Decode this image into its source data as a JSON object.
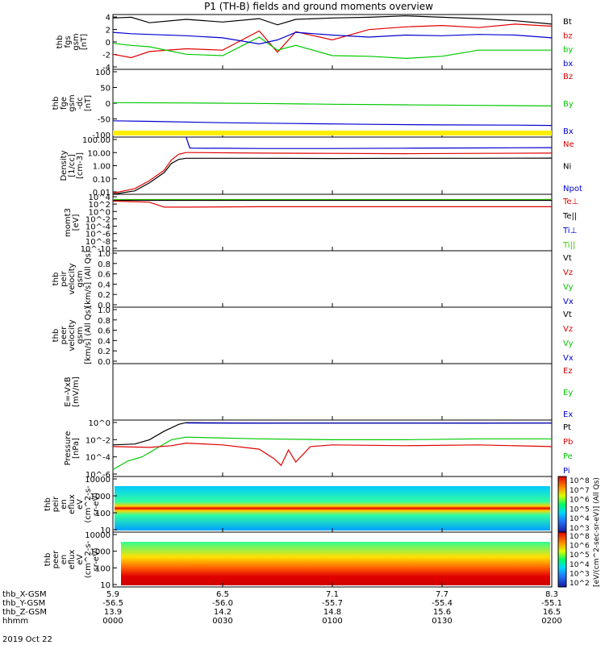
{
  "title": "P1 (TH-B) fields and ground moments overview",
  "date_label": "2019 Oct 22",
  "colors": {
    "black": "#000000",
    "red": "#e00000",
    "green": "#00c800",
    "blue": "#0000d0",
    "yellow": "#ffee00",
    "lime": "#33cc00"
  },
  "colorbar": {
    "ticks": [
      "10^8",
      "10^7",
      "10^6",
      "10^5",
      "10^4",
      "10^3"
    ],
    "ticks2": [
      "10^8",
      "10^6",
      "10^5",
      "10^4",
      "10^3",
      "10^2"
    ],
    "label": "[eV/(cm^2-sec-sr-eV)] (All Qs)"
  },
  "time_axis": {
    "rows": [
      {
        "label": "thb_X-GSM",
        "values": [
          "5.9",
          "6.5",
          "7.1",
          "7.7",
          "8.3"
        ]
      },
      {
        "label": "thb_Y-GSM",
        "values": [
          "-56.5",
          "-56.0",
          "-55.7",
          "-55.4",
          "-55.1"
        ]
      },
      {
        "label": "thb_Z-GSM",
        "values": [
          "13.9",
          "14.2",
          "14.8",
          "15.6",
          "16.5"
        ]
      },
      {
        "label": "hhmm",
        "values": [
          "0000",
          "0030",
          "0100",
          "0130",
          "0200"
        ]
      }
    ]
  },
  "chart_data": [
    {
      "type": "line",
      "id": "fgs",
      "ylabel_lines": [
        "thb",
        "fgs",
        "gsm",
        "[nT]"
      ],
      "ylim": [
        -4,
        4
      ],
      "yticks": [
        "4",
        "2",
        "0",
        "-2",
        "-4"
      ],
      "legend": [
        {
          "name": "Bt",
          "color": "#000000"
        },
        {
          "name": "bz",
          "color": "#e00000"
        },
        {
          "name": "by",
          "color": "#00c800"
        },
        {
          "name": "bx",
          "color": "#0000d0"
        }
      ],
      "series": [
        {
          "name": "Bt",
          "color": "#000000",
          "x": [
            0,
            5,
            10,
            20,
            30,
            40,
            45,
            50,
            60,
            70,
            80,
            90,
            100,
            110,
            120
          ],
          "y": [
            3.5,
            3.6,
            2.8,
            3.3,
            2.9,
            3.4,
            2.5,
            3.3,
            3.5,
            3.6,
            3.8,
            3.6,
            3.4,
            3.1,
            2.6
          ]
        },
        {
          "name": "bz",
          "color": "#e00000",
          "x": [
            0,
            5,
            10,
            20,
            30,
            40,
            45,
            50,
            60,
            70,
            80,
            90,
            100,
            110,
            120
          ],
          "y": [
            -1.8,
            -2.3,
            -1.4,
            -1.0,
            -1.2,
            1.6,
            -1.5,
            1.5,
            0.3,
            1.8,
            2.2,
            2.4,
            2.1,
            2.6,
            2.3
          ]
        },
        {
          "name": "by",
          "color": "#00c800",
          "x": [
            0,
            5,
            10,
            20,
            30,
            40,
            45,
            50,
            60,
            70,
            80,
            90,
            100,
            110,
            120
          ],
          "y": [
            -0.2,
            -0.5,
            -0.7,
            -1.8,
            -2.0,
            0.7,
            -1.2,
            -0.5,
            -2.0,
            -2.1,
            -2.4,
            -2.1,
            -1.2,
            -1.2,
            -1.2
          ]
        },
        {
          "name": "bx",
          "color": "#0000d0",
          "x": [
            0,
            5,
            10,
            20,
            30,
            40,
            45,
            50,
            60,
            70,
            80,
            90,
            100,
            110,
            120
          ],
          "y": [
            1.4,
            1.2,
            1.1,
            0.9,
            0.6,
            -0.3,
            0.3,
            1.4,
            1.0,
            0.7,
            1.0,
            0.9,
            1.1,
            1.0,
            0.6
          ]
        }
      ]
    },
    {
      "type": "line",
      "id": "fge",
      "ylabel_lines": [
        "thb",
        "fge",
        "gsm",
        "-dc",
        "[nT]"
      ],
      "ylim": [
        -150,
        100
      ],
      "yticks": [
        "100",
        "50",
        "0",
        "-50",
        "-100"
      ],
      "legend": [
        {
          "name": "Bz",
          "color": "#e00000"
        },
        {
          "name": "By",
          "color": "#00c800"
        },
        {
          "name": "Bx",
          "color": "#0000d0"
        }
      ],
      "series": [
        {
          "name": "By",
          "color": "#00c800",
          "x": [
            0,
            20,
            40,
            60,
            80,
            100,
            120
          ],
          "y": [
            -23,
            -24,
            -26,
            -29,
            -31,
            -33,
            -35
          ]
        },
        {
          "name": "Bx",
          "color": "#0000d0",
          "x": [
            0,
            10,
            30,
            50,
            70,
            90,
            110,
            120
          ],
          "y": [
            -90,
            -92,
            -97,
            -100,
            -103,
            -105,
            -106,
            -107
          ]
        }
      ]
    },
    {
      "type": "line",
      "id": "density",
      "ylabel_lines": [
        "Density",
        "[1/cc]",
        "[cm-3]"
      ],
      "ylim_log": [
        -2.7,
        2.3
      ],
      "yticks": [
        "100.00",
        "10.00",
        "1.00",
        "0.10",
        "0.01"
      ],
      "legend": [
        {
          "name": "Ne",
          "color": "#e00000"
        },
        {
          "name": "Ni",
          "color": "#000000"
        },
        {
          "name": "Npot",
          "color": "#0000d0"
        }
      ],
      "series": [
        {
          "name": "Npot",
          "color": "#0000d0",
          "x": [
            20,
            21,
            22,
            30,
            40,
            60,
            80,
            100,
            120
          ],
          "y": [
            2.3,
            1.35,
            1.33,
            1.32,
            1.3,
            1.3,
            1.33,
            1.35,
            1.38
          ]
        },
        {
          "name": "Ne",
          "color": "#e00000",
          "x": [
            0,
            6,
            10,
            14,
            16,
            18,
            20,
            22,
            40,
            60,
            80,
            100,
            120
          ],
          "y": [
            -2.6,
            -2.2,
            -1.5,
            -0.6,
            0.3,
            0.8,
            0.95,
            0.95,
            0.9,
            0.88,
            0.85,
            0.88,
            0.9
          ]
        },
        {
          "name": "Ni",
          "color": "#000000",
          "x": [
            0,
            6,
            10,
            14,
            16,
            18,
            20,
            22,
            40,
            60,
            80,
            100,
            120
          ],
          "y": [
            -2.7,
            -2.4,
            -1.7,
            -0.8,
            0.0,
            0.35,
            0.45,
            0.45,
            0.45,
            0.43,
            0.45,
            0.45,
            0.46
          ]
        }
      ]
    },
    {
      "type": "line",
      "id": "moms",
      "ylabel_lines": [
        "momt3",
        "[eV]"
      ],
      "yticks": [
        "10^4",
        "10^2",
        "10^0",
        "10^-2",
        "10^-4",
        "10^-6",
        "10^-8",
        "10^-10"
      ],
      "legend": [
        {
          "name": "Te⊥",
          "color": "#e00000"
        },
        {
          "name": "Te||",
          "color": "#000000"
        },
        {
          "name": "Ti⊥",
          "color": "#0000d0"
        },
        {
          "name": "Ti||",
          "color": "#33cc00"
        }
      ],
      "series": [
        {
          "name": "Ti||",
          "color": "#33cc00",
          "x": [
            0,
            120
          ],
          "y": [
            3.6,
            3.6
          ]
        },
        {
          "name": "Te||",
          "color": "#000000",
          "x": [
            0,
            120
          ],
          "y": [
            3.4,
            3.4
          ]
        },
        {
          "name": "Te⊥",
          "color": "#e00000",
          "x": [
            0,
            10,
            14,
            20,
            40,
            80,
            120
          ],
          "y": [
            3.2,
            2.9,
            1.6,
            1.6,
            1.7,
            1.7,
            1.7
          ]
        }
      ]
    },
    {
      "type": "line",
      "id": "peir",
      "ylabel_lines": [
        "thb",
        "peir",
        "velocity",
        "gsm",
        "[km/s] (All Qs)"
      ],
      "yticks": [
        "1.0",
        "0.8",
        "0.6",
        "0.4",
        "0.2",
        "0.0"
      ],
      "legend": [
        {
          "name": "Vt",
          "color": "#000000"
        },
        {
          "name": "Vz",
          "color": "#e00000"
        },
        {
          "name": "Vy",
          "color": "#00c800"
        },
        {
          "name": "Vx",
          "color": "#0000d0"
        }
      ],
      "series": []
    },
    {
      "type": "line",
      "id": "peer",
      "ylabel_lines": [
        "thb",
        "peer",
        "velocity",
        "gsm",
        "[km/s] (All Qs)"
      ],
      "yticks": [
        "1.0",
        "0.8",
        "0.6",
        "0.4",
        "0.2",
        "0.0"
      ],
      "legend": [
        {
          "name": "Vt",
          "color": "#000000"
        },
        {
          "name": "Vz",
          "color": "#e00000"
        },
        {
          "name": "Vy",
          "color": "#00c800"
        },
        {
          "name": "Vx",
          "color": "#0000d0"
        }
      ],
      "series": []
    },
    {
      "type": "line",
      "id": "evxb",
      "ylabel_lines": [
        "E=-VxB",
        "[mV/m]"
      ],
      "yticks": [],
      "legend": [
        {
          "name": "Ez",
          "color": "#e00000"
        },
        {
          "name": "Ey",
          "color": "#00c800"
        },
        {
          "name": "Ex",
          "color": "#0000d0"
        }
      ],
      "series": []
    },
    {
      "type": "line",
      "id": "pressure",
      "ylabel_lines": [
        "Pressure",
        "[nPa]"
      ],
      "ylim_log": [
        -6.3,
        0.3
      ],
      "yticks": [
        "10^0",
        "10^-2",
        "10^-4",
        "10^-6"
      ],
      "legend": [
        {
          "name": "Pt",
          "color": "#000000"
        },
        {
          "name": "Pb",
          "color": "#e00000"
        },
        {
          "name": "Pe",
          "color": "#00c800"
        },
        {
          "name": "Pi",
          "color": "#0000d0"
        }
      ],
      "series": [
        {
          "name": "Pt",
          "color": "#000000",
          "x": [
            0,
            6,
            10,
            14,
            18,
            20,
            22,
            40,
            60,
            80,
            100,
            120
          ],
          "y": [
            -2.6,
            -2.5,
            -2.0,
            -1.0,
            -0.2,
            0.0,
            0.0,
            -0.05,
            -0.05,
            -0.05,
            -0.05,
            -0.05
          ]
        },
        {
          "name": "Pi",
          "color": "#0000d0",
          "x": [
            20,
            40,
            60,
            80,
            100,
            120
          ],
          "y": [
            -0.05,
            -0.07,
            -0.06,
            -0.06,
            -0.07,
            -0.05
          ]
        },
        {
          "name": "Pe",
          "color": "#00c800",
          "x": [
            0,
            4,
            8,
            12,
            16,
            20,
            40,
            60,
            80,
            100,
            120
          ],
          "y": [
            -5.5,
            -4.5,
            -4.0,
            -3.0,
            -2.0,
            -1.7,
            -1.9,
            -2.0,
            -2.0,
            -1.9,
            -1.9
          ]
        },
        {
          "name": "Pb",
          "color": "#e00000",
          "x": [
            0,
            10,
            16,
            20,
            30,
            40,
            44,
            46,
            48,
            50,
            54,
            60,
            80,
            100,
            120
          ],
          "y": [
            -2.8,
            -2.9,
            -2.7,
            -2.4,
            -2.6,
            -3.1,
            -4.2,
            -5.0,
            -3.2,
            -4.6,
            -2.8,
            -2.6,
            -2.7,
            -2.6,
            -2.8
          ]
        }
      ]
    },
    {
      "type": "heatmap",
      "id": "peir_en",
      "ylabel_lines": [
        "thb",
        "peir",
        "en",
        "eflux",
        "eV",
        "(cm^2-s-",
        "sr-eV)"
      ],
      "yticks": [
        "10000",
        "1000",
        "100",
        "10"
      ]
    },
    {
      "type": "heatmap",
      "id": "peer_en",
      "ylabel_lines": [
        "thb",
        "peer",
        "en",
        "eflux",
        "eV",
        "(cm^2-s-",
        "sr-eV)"
      ],
      "yticks": [
        "10000",
        "1000",
        "100",
        "10"
      ]
    }
  ]
}
